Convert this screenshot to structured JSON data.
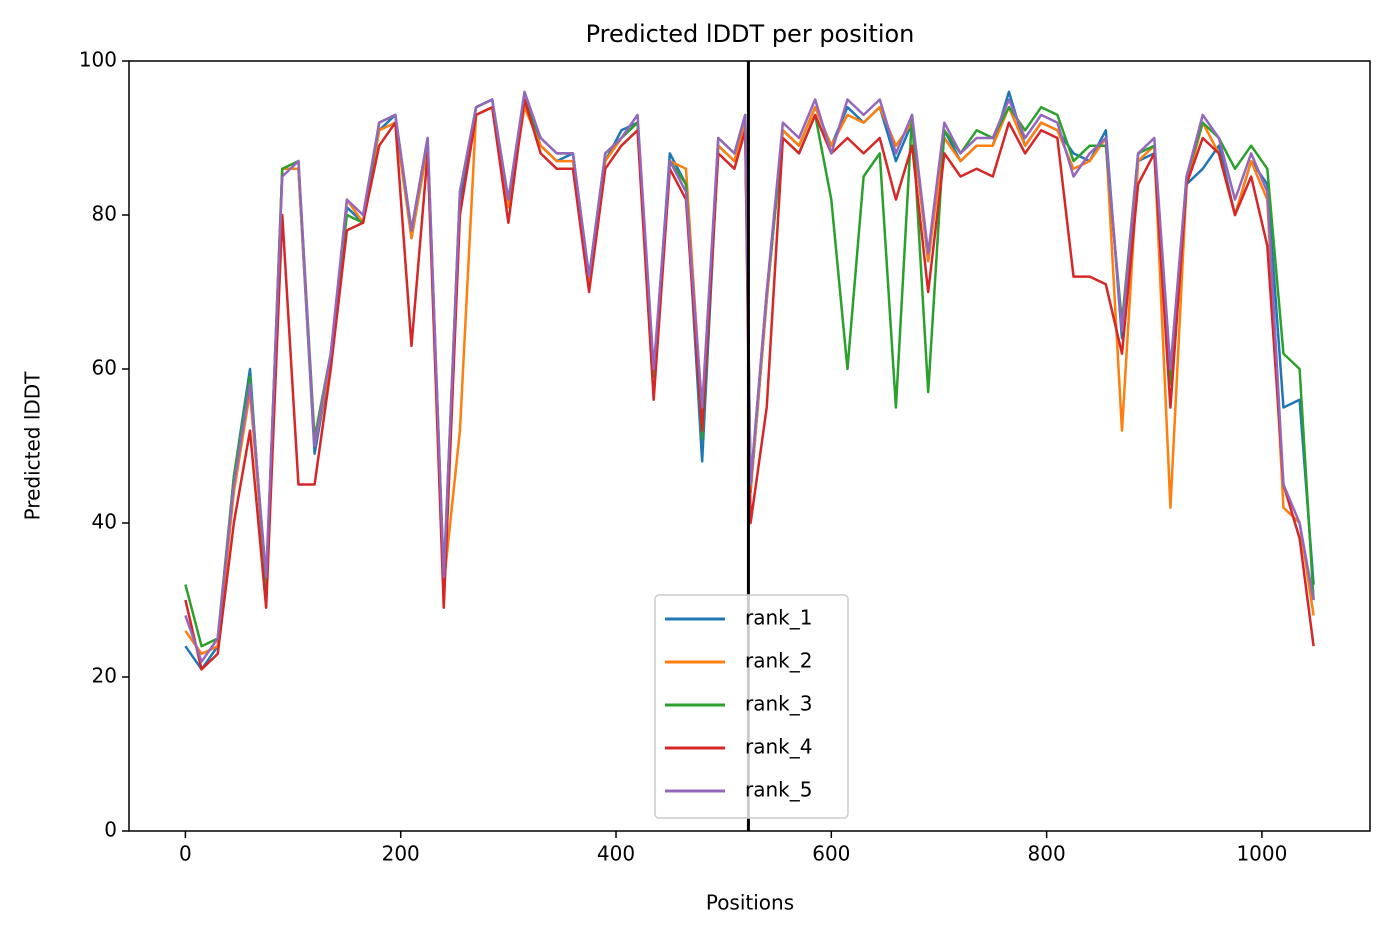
{
  "chart_data": {
    "type": "line",
    "title": "Predicted lDDT per position",
    "x_label": "Positions",
    "y_label": "Predicted lDDT",
    "x": [
      0,
      15,
      30,
      45,
      60,
      75,
      90,
      105,
      120,
      135,
      150,
      165,
      180,
      195,
      210,
      225,
      240,
      255,
      270,
      285,
      300,
      315,
      330,
      345,
      360,
      375,
      390,
      405,
      420,
      435,
      450,
      465,
      480,
      495,
      510,
      520,
      525,
      540,
      555,
      570,
      585,
      600,
      615,
      630,
      645,
      660,
      675,
      690,
      705,
      720,
      735,
      750,
      765,
      780,
      795,
      810,
      825,
      840,
      855,
      870,
      885,
      900,
      915,
      930,
      945,
      960,
      975,
      990,
      1005,
      1020,
      1035,
      1048
    ],
    "series": [
      {
        "name": "rank_1",
        "color": "#1f77b4",
        "values": [
          24,
          21,
          24,
          46,
          60,
          30,
          86,
          86,
          49,
          61,
          81,
          79,
          91,
          93,
          77,
          89,
          32,
          82,
          94,
          95,
          81,
          95,
          89,
          87,
          88,
          71,
          87,
          91,
          92,
          59,
          88,
          84,
          48,
          89,
          87,
          92,
          44,
          69,
          91,
          89,
          94,
          89,
          94,
          92,
          94,
          87,
          92,
          74,
          91,
          87,
          89,
          89,
          96,
          89,
          92,
          91,
          88,
          87,
          91,
          64,
          87,
          88,
          59,
          84,
          86,
          89,
          80,
          87,
          84,
          55,
          56,
          32
        ]
      },
      {
        "name": "rank_2",
        "color": "#ff7f0e",
        "values": [
          26,
          23,
          24,
          44,
          57,
          32,
          86,
          86,
          50,
          61,
          82,
          79,
          91,
          92,
          77,
          89,
          32,
          52,
          93,
          94,
          81,
          94,
          89,
          87,
          87,
          71,
          87,
          90,
          92,
          59,
          87,
          86,
          54,
          89,
          87,
          92,
          44,
          69,
          91,
          89,
          94,
          89,
          93,
          92,
          94,
          89,
          92,
          74,
          90,
          87,
          89,
          89,
          94,
          89,
          92,
          91,
          86,
          87,
          90,
          52,
          87,
          89,
          42,
          84,
          92,
          88,
          80,
          87,
          82,
          42,
          40,
          28
        ]
      },
      {
        "name": "rank_3",
        "color": "#2ca02c",
        "values": [
          32,
          24,
          25,
          46,
          59,
          32,
          86,
          87,
          51,
          62,
          80,
          79,
          92,
          93,
          78,
          90,
          33,
          83,
          94,
          95,
          82,
          95,
          90,
          88,
          88,
          72,
          88,
          90,
          92,
          59,
          87,
          84,
          51,
          90,
          88,
          93,
          45,
          70,
          90,
          88,
          93,
          82,
          60,
          85,
          88,
          55,
          93,
          57,
          91,
          88,
          91,
          90,
          94,
          91,
          94,
          93,
          87,
          89,
          89,
          66,
          88,
          89,
          58,
          85,
          92,
          90,
          86,
          89,
          86,
          62,
          60,
          30
        ]
      },
      {
        "name": "rank_4",
        "color": "#d62728",
        "values": [
          30,
          21,
          23,
          40,
          52,
          29,
          80,
          45,
          45,
          60,
          78,
          79,
          89,
          92,
          63,
          88,
          29,
          80,
          93,
          94,
          79,
          95,
          88,
          86,
          86,
          70,
          86,
          89,
          91,
          56,
          86,
          82,
          52,
          88,
          86,
          91,
          40,
          55,
          90,
          88,
          93,
          88,
          90,
          88,
          90,
          82,
          89,
          70,
          88,
          85,
          86,
          85,
          92,
          88,
          91,
          90,
          72,
          72,
          71,
          62,
          84,
          88,
          55,
          84,
          90,
          88,
          80,
          85,
          76,
          45,
          38,
          24
        ]
      },
      {
        "name": "rank_5",
        "color": "#9467bd",
        "values": [
          28,
          22,
          25,
          45,
          58,
          33,
          85,
          87,
          50,
          62,
          82,
          80,
          92,
          93,
          78,
          90,
          33,
          83,
          94,
          95,
          82,
          96,
          90,
          88,
          88,
          72,
          88,
          90,
          93,
          60,
          87,
          83,
          55,
          90,
          88,
          93,
          45,
          70,
          92,
          90,
          95,
          88,
          95,
          93,
          95,
          88,
          93,
          75,
          92,
          88,
          90,
          90,
          95,
          90,
          93,
          92,
          85,
          88,
          90,
          65,
          88,
          90,
          60,
          85,
          93,
          90,
          82,
          88,
          83,
          45,
          40,
          30
        ]
      }
    ],
    "vlines": [
      523
    ],
    "xlim": [
      -52.4,
      1100.4
    ],
    "xticks": [
      0,
      200,
      400,
      600,
      800,
      1000
    ],
    "ylim": [
      0,
      100
    ],
    "yticks": [
      0,
      20,
      40,
      60,
      80,
      100
    ],
    "legend": "lower center"
  }
}
